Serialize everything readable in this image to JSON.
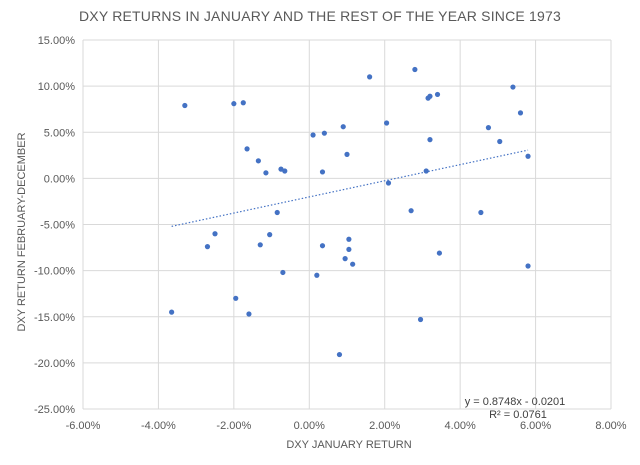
{
  "chart_data": {
    "type": "scatter",
    "title": "DXY RETURNS IN JANUARY AND THE REST OF THE YEAR SINCE 1973",
    "xlabel": "DXY JANUARY RETURN",
    "ylabel": "DXY RETURN FEBRUARY-DECEMBER",
    "xlim": [
      -0.06,
      0.08
    ],
    "ylim": [
      -0.25,
      0.15
    ],
    "x_ticks": [
      -0.06,
      -0.04,
      -0.02,
      0.0,
      0.02,
      0.04,
      0.06,
      0.08
    ],
    "y_ticks": [
      -0.25,
      -0.2,
      -0.15,
      -0.1,
      -0.05,
      0.0,
      0.05,
      0.1,
      0.15
    ],
    "x_tick_labels": [
      "-6.00%",
      "-4.00%",
      "-2.00%",
      "0.00%",
      "2.00%",
      "4.00%",
      "6.00%",
      "8.00%"
    ],
    "y_tick_labels": [
      "-25.00%",
      "-20.00%",
      "-15.00%",
      "-10.00%",
      "-5.00%",
      "0.00%",
      "5.00%",
      "10.00%",
      "15.00%"
    ],
    "grid": true,
    "points": [
      {
        "x": -0.0365,
        "y": -0.145
      },
      {
        "x": -0.033,
        "y": 0.079
      },
      {
        "x": -0.027,
        "y": -0.074
      },
      {
        "x": -0.025,
        "y": -0.06
      },
      {
        "x": -0.02,
        "y": 0.081
      },
      {
        "x": -0.0195,
        "y": -0.13
      },
      {
        "x": -0.0175,
        "y": 0.082
      },
      {
        "x": -0.0165,
        "y": 0.032
      },
      {
        "x": -0.016,
        "y": -0.147
      },
      {
        "x": -0.0135,
        "y": 0.019
      },
      {
        "x": -0.013,
        "y": -0.072
      },
      {
        "x": -0.0115,
        "y": 0.006
      },
      {
        "x": -0.0105,
        "y": -0.061
      },
      {
        "x": -0.0085,
        "y": -0.037
      },
      {
        "x": -0.0075,
        "y": 0.01
      },
      {
        "x": -0.007,
        "y": -0.102
      },
      {
        "x": -0.0065,
        "y": 0.008
      },
      {
        "x": 0.001,
        "y": 0.047
      },
      {
        "x": 0.002,
        "y": -0.105
      },
      {
        "x": 0.0035,
        "y": -0.073
      },
      {
        "x": 0.0035,
        "y": 0.007
      },
      {
        "x": 0.004,
        "y": 0.049
      },
      {
        "x": 0.008,
        "y": -0.191
      },
      {
        "x": 0.009,
        "y": 0.056
      },
      {
        "x": 0.0095,
        "y": -0.087
      },
      {
        "x": 0.01,
        "y": 0.026
      },
      {
        "x": 0.0105,
        "y": -0.077
      },
      {
        "x": 0.0105,
        "y": -0.066
      },
      {
        "x": 0.0115,
        "y": -0.093
      },
      {
        "x": 0.016,
        "y": 0.11
      },
      {
        "x": 0.0205,
        "y": 0.06
      },
      {
        "x": 0.021,
        "y": -0.005
      },
      {
        "x": 0.027,
        "y": -0.035
      },
      {
        "x": 0.028,
        "y": 0.118
      },
      {
        "x": 0.0295,
        "y": -0.153
      },
      {
        "x": 0.031,
        "y": 0.008
      },
      {
        "x": 0.0315,
        "y": 0.087
      },
      {
        "x": 0.032,
        "y": 0.042
      },
      {
        "x": 0.032,
        "y": 0.089
      },
      {
        "x": 0.034,
        "y": 0.091
      },
      {
        "x": 0.0345,
        "y": -0.081
      },
      {
        "x": 0.0455,
        "y": -0.037
      },
      {
        "x": 0.0475,
        "y": 0.055
      },
      {
        "x": 0.0505,
        "y": 0.04
      },
      {
        "x": 0.054,
        "y": 0.099
      },
      {
        "x": 0.056,
        "y": 0.071
      },
      {
        "x": 0.058,
        "y": -0.095
      },
      {
        "x": 0.058,
        "y": 0.024
      }
    ],
    "trendline": {
      "slope": 0.8748,
      "intercept": -0.0201,
      "x_range": [
        -0.0365,
        0.058
      ],
      "equation_label": "y = 0.8748x - 0.0201",
      "r2_label": "R² = 0.0761"
    },
    "colors": {
      "point": "#4472c4",
      "grid": "#d9d9d9",
      "text": "#595959"
    }
  }
}
